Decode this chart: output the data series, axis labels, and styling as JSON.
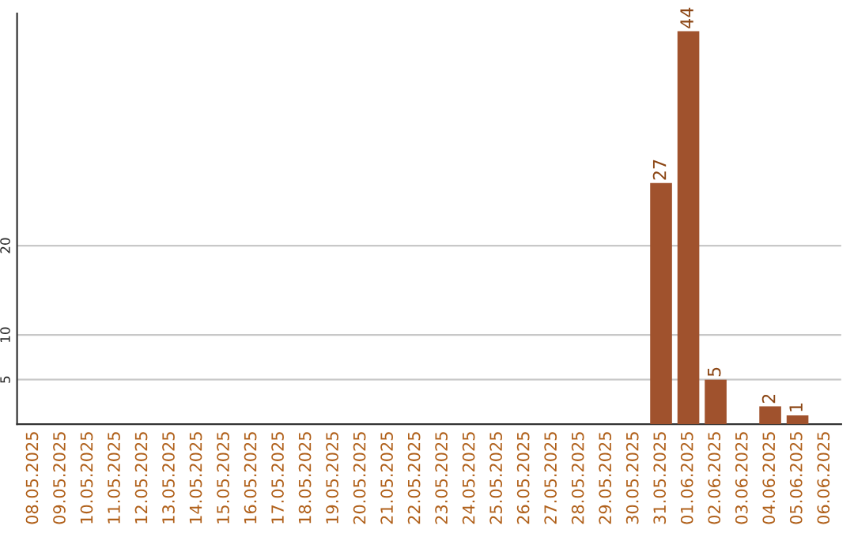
{
  "chart_data": {
    "type": "bar",
    "categories": [
      "08.05.2025",
      "09.05.2025",
      "10.05.2025",
      "11.05.2025",
      "12.05.2025",
      "13.05.2025",
      "14.05.2025",
      "15.05.2025",
      "16.05.2025",
      "17.05.2025",
      "18.05.2025",
      "19.05.2025",
      "20.05.2025",
      "21.05.2025",
      "22.05.2025",
      "23.05.2025",
      "24.05.2025",
      "25.05.2025",
      "26.05.2025",
      "27.05.2025",
      "28.05.2025",
      "29.05.2025",
      "30.05.2025",
      "31.05.2025",
      "01.06.2025",
      "02.06.2025",
      "03.06.2025",
      "04.06.2025",
      "05.06.2025",
      "06.06.2025"
    ],
    "values": [
      0,
      0,
      0,
      0,
      0,
      0,
      0,
      0,
      0,
      0,
      0,
      0,
      0,
      0,
      0,
      0,
      0,
      0,
      0,
      0,
      0,
      0,
      0,
      27,
      44,
      5,
      0,
      2,
      1,
      0
    ],
    "value_labels": [
      null,
      null,
      null,
      null,
      null,
      null,
      null,
      null,
      null,
      null,
      null,
      null,
      null,
      null,
      null,
      null,
      null,
      null,
      null,
      null,
      null,
      null,
      null,
      "27",
      "44",
      "5",
      null,
      "2",
      "1",
      null
    ],
    "color": "#a0522d",
    "ylim": [
      0,
      46
    ],
    "yticks": [
      5,
      10,
      20
    ],
    "grid": "y"
  }
}
